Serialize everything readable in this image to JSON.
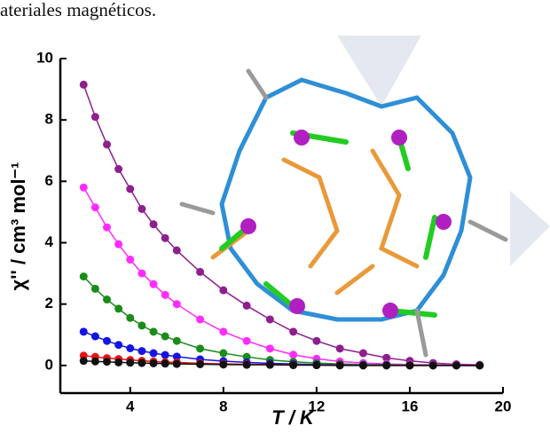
{
  "heading": "ateriales magnéticos.",
  "chart_data": {
    "type": "line",
    "x_label": "T / K",
    "y_label": "χ'' / cm³ mol⁻¹",
    "x": [
      2,
      2.5,
      3,
      3.5,
      4,
      4.5,
      5,
      5.5,
      6,
      7,
      8,
      9,
      10,
      11,
      12,
      13,
      14,
      15,
      16,
      17,
      18,
      19
    ],
    "series": [
      {
        "color": "#8e1f8e",
        "values": [
          9.15,
          8.1,
          7.2,
          6.4,
          5.75,
          5.1,
          4.6,
          4.15,
          3.75,
          3.05,
          2.45,
          1.95,
          1.5,
          1.1,
          0.8,
          0.55,
          0.4,
          0.25,
          0.15,
          0.08,
          0.04,
          0.02
        ]
      },
      {
        "color": "#ff2bff",
        "values": [
          5.8,
          5.15,
          4.5,
          3.95,
          3.45,
          3.0,
          2.65,
          2.3,
          2.0,
          1.5,
          1.1,
          0.8,
          0.55,
          0.35,
          0.22,
          0.13,
          0.08,
          0.05,
          0.03,
          0.02,
          0.01,
          0.01
        ]
      },
      {
        "color": "#1a8c1a",
        "values": [
          2.9,
          2.5,
          2.15,
          1.85,
          1.55,
          1.3,
          1.1,
          0.95,
          0.8,
          0.55,
          0.4,
          0.28,
          0.18,
          0.12,
          0.08,
          0.05,
          0.03,
          0.02,
          0.01,
          0.01,
          0,
          0
        ]
      },
      {
        "color": "#1414e6",
        "values": [
          1.1,
          0.95,
          0.8,
          0.67,
          0.56,
          0.47,
          0.4,
          0.34,
          0.29,
          0.2,
          0.14,
          0.1,
          0.07,
          0.05,
          0.03,
          0.02,
          0.01,
          0.01,
          0,
          0,
          0,
          0
        ]
      },
      {
        "color": "#e61414",
        "values": [
          0.32,
          0.28,
          0.24,
          0.21,
          0.18,
          0.15,
          0.13,
          0.11,
          0.1,
          0.07,
          0.05,
          0.04,
          0.03,
          0.02,
          0.01,
          0.01,
          0,
          0,
          0,
          0,
          0,
          0
        ]
      },
      {
        "color": "#111111",
        "values": [
          0.15,
          0.13,
          0.12,
          0.1,
          0.09,
          0.08,
          0.07,
          0.06,
          0.05,
          0.04,
          0.03,
          0.02,
          0.02,
          0.01,
          0.01,
          0,
          0,
          0,
          0,
          0,
          0,
          0
        ]
      }
    ],
    "xlim": [
      1,
      20
    ],
    "ylim": [
      -0.9,
      10
    ],
    "xticks": [
      4,
      8,
      12,
      16,
      20
    ],
    "yticks": [
      0,
      2,
      4,
      6,
      8,
      10
    ]
  }
}
